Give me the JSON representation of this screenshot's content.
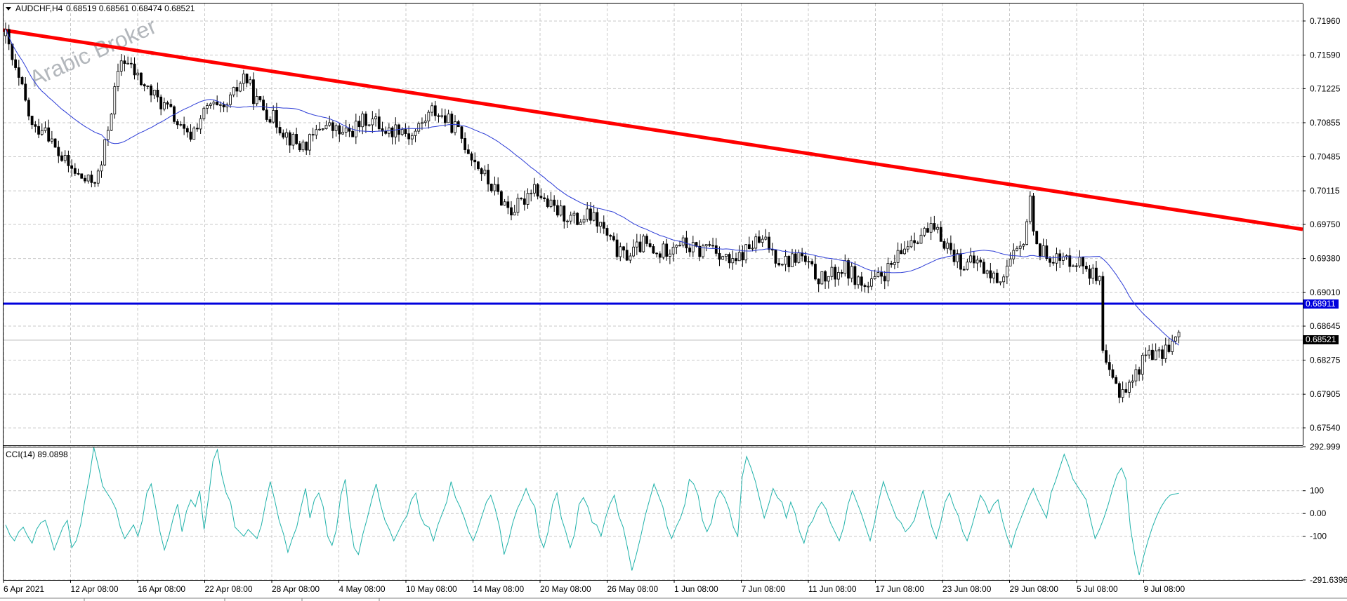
{
  "header": {
    "symbol": "AUDCHF,H4",
    "ohlc": "0.68519 0.68561 0.68474 0.68521"
  },
  "watermark": "Arabic Broker",
  "indicator": {
    "label": "CCI(14) 89.0898"
  },
  "colors": {
    "background": "#ffffff",
    "grid": "#c0c0c0",
    "candle": "#000000",
    "trendline": "#ff0000",
    "support_line": "#0000dd",
    "moving_average": "#2b3bd6",
    "cci_line": "#20b2aa",
    "price_tag_blue": "#0000dd",
    "price_tag_black": "#000000"
  },
  "chart_data": [
    {
      "type": "candlestick",
      "panel": "main",
      "symbol": "AUDCHF",
      "timeframe": "H4",
      "ylim": [
        0.6735,
        0.7215
      ],
      "y_ticks": [
        "0.71960",
        "0.71590",
        "0.71225",
        "0.70855",
        "0.70485",
        "0.70115",
        "0.69750",
        "0.69380",
        "0.69010",
        "0.68645",
        "0.68275",
        "0.67905",
        "0.67540"
      ],
      "x_ticks": [
        "6 Apr 2021",
        "12 Apr 08:00",
        "16 Apr 08:00",
        "22 Apr 08:00",
        "28 Apr 08:00",
        "4 May 08:00",
        "10 May 08:00",
        "14 May 08:00",
        "20 May 08:00",
        "26 May 08:00",
        "1 Jun 08:00",
        "7 Jun 08:00",
        "11 Jun 08:00",
        "17 Jun 08:00",
        "23 Jun 08:00",
        "29 Jun 08:00",
        "5 Jul 08:00",
        "9 Jul 08:00"
      ],
      "x_range_bars": [
        0,
        375
      ],
      "close_path": [
        [
          0,
          0.718
        ],
        [
          3,
          0.7145
        ],
        [
          6,
          0.712
        ],
        [
          10,
          0.7075
        ],
        [
          14,
          0.7085
        ],
        [
          18,
          0.7055
        ],
        [
          22,
          0.704
        ],
        [
          26,
          0.7028
        ],
        [
          30,
          0.702
        ],
        [
          34,
          0.703
        ],
        [
          38,
          0.71
        ],
        [
          42,
          0.7158
        ],
        [
          45,
          0.7145
        ],
        [
          50,
          0.7125
        ],
        [
          55,
          0.711
        ],
        [
          60,
          0.7095
        ],
        [
          63,
          0.7078
        ],
        [
          66,
          0.7068
        ],
        [
          70,
          0.709
        ],
        [
          74,
          0.7105
        ],
        [
          78,
          0.7095
        ],
        [
          82,
          0.7115
        ],
        [
          86,
          0.7138
        ],
        [
          90,
          0.711
        ],
        [
          94,
          0.7098
        ],
        [
          98,
          0.7085
        ],
        [
          102,
          0.707
        ],
        [
          106,
          0.706
        ],
        [
          110,
          0.7065
        ],
        [
          114,
          0.7085
        ],
        [
          118,
          0.7078
        ],
        [
          122,
          0.7072
        ],
        [
          126,
          0.708
        ],
        [
          130,
          0.709
        ],
        [
          134,
          0.7085
        ],
        [
          138,
          0.7075
        ],
        [
          142,
          0.7082
        ],
        [
          146,
          0.707
        ],
        [
          150,
          0.7085
        ],
        [
          154,
          0.71
        ],
        [
          158,
          0.709
        ],
        [
          162,
          0.708
        ],
        [
          166,
          0.706
        ],
        [
          170,
          0.704
        ],
        [
          174,
          0.702
        ],
        [
          178,
          0.7005
        ],
        [
          182,
          0.699
        ],
        [
          186,
          0.6998
        ],
        [
          190,
          0.702
        ],
        [
          194,
          0.7
        ],
        [
          198,
          0.699
        ],
        [
          202,
          0.6985
        ],
        [
          206,
          0.6978
        ],
        [
          210,
          0.6985
        ],
        [
          214,
          0.6975
        ],
        [
          218,
          0.6955
        ],
        [
          222,
          0.694
        ],
        [
          226,
          0.6945
        ],
        [
          230,
          0.6955
        ],
        [
          234,
          0.694
        ],
        [
          238,
          0.6948
        ],
        [
          242,
          0.6958
        ],
        [
          246,
          0.695
        ],
        [
          250,
          0.6945
        ],
        [
          254,
          0.6955
        ],
        [
          258,
          0.6942
        ],
        [
          262,
          0.693
        ],
        [
          266,
          0.6945
        ],
        [
          270,
          0.6955
        ],
        [
          274,
          0.6955
        ],
        [
          278,
          0.6938
        ],
        [
          282,
          0.6935
        ],
        [
          286,
          0.6942
        ],
        [
          290,
          0.6925
        ],
        [
          294,
          0.6915
        ],
        [
          298,
          0.692
        ],
        [
          302,
          0.6928
        ],
        [
          306,
          0.6918
        ],
        [
          310,
          0.6905
        ],
        [
          314,
          0.6915
        ],
        [
          318,
          0.6925
        ],
        [
          322,
          0.694
        ],
        [
          326,
          0.696
        ],
        [
          330,
          0.6965
        ],
        [
          334,
          0.6968
        ],
        [
          338,
          0.6958
        ],
        [
          342,
          0.694
        ],
        [
          346,
          0.693
        ],
        [
          350,
          0.6935
        ],
        [
          354,
          0.692
        ],
        [
          358,
          0.6915
        ],
        [
          362,
          0.6935
        ],
        [
          366,
          0.6948
        ],
        [
          369,
          0.7
        ],
        [
          371,
          0.696
        ],
        [
          373,
          0.6942
        ],
        [
          375,
          0.6945
        ]
      ],
      "second_leg": {
        "x_offset_bars": 315,
        "close_path": [
          [
            0,
            0.6945
          ],
          [
            4,
            0.6935
          ],
          [
            8,
            0.6938
          ],
          [
            12,
            0.693
          ],
          [
            16,
            0.691
          ],
          [
            17,
            0.683
          ],
          [
            19,
            0.681
          ],
          [
            22,
            0.6795
          ],
          [
            25,
            0.68
          ],
          [
            28,
            0.682
          ],
          [
            31,
            0.684
          ],
          [
            34,
            0.683
          ],
          [
            37,
            0.6845
          ],
          [
            40,
            0.6852
          ]
        ]
      },
      "overlays": {
        "trendline": {
          "from": [
            "6 Apr 2021",
            0.7186
          ],
          "to": [
            "9 Jul 08:00+",
            0.6977
          ]
        },
        "support_level": 0.68911,
        "price_labels": [
          "0.68911",
          "0.68521"
        ],
        "current_price": 0.68521,
        "moving_average_shape": "smooth declining line ending near 0.6892"
      }
    },
    {
      "type": "line",
      "panel": "indicator",
      "name": "CCI(14)",
      "current": 89.0898,
      "ylim": [
        -291.6396,
        292.999
      ],
      "y_ticks": [
        "292.999",
        "100",
        "0.00",
        "-100",
        "-291.6396"
      ],
      "values": [
        -50,
        -95,
        -120,
        -80,
        -60,
        -100,
        -130,
        -70,
        -40,
        -30,
        -90,
        -160,
        -110,
        -60,
        -30,
        -150,
        -120,
        -50,
        60,
        160,
        290,
        210,
        120,
        90,
        60,
        20,
        -60,
        -110,
        -80,
        -50,
        -100,
        -30,
        90,
        130,
        30,
        -80,
        -160,
        -100,
        -20,
        40,
        -80,
        10,
        60,
        30,
        100,
        -70,
        70,
        230,
        280,
        170,
        90,
        50,
        -60,
        -80,
        -100,
        -70,
        -90,
        -110,
        -50,
        50,
        140,
        60,
        -30,
        -90,
        -170,
        -110,
        -60,
        30,
        110,
        -20,
        60,
        90,
        30,
        -100,
        -140,
        -70,
        80,
        150,
        -30,
        -150,
        -180,
        -90,
        -20,
        60,
        130,
        40,
        -30,
        -70,
        -120,
        -80,
        -40,
        -10,
        60,
        90,
        -10,
        -50,
        -60,
        -120,
        -50,
        0,
        50,
        140,
        70,
        30,
        -20,
        -80,
        -120,
        -70,
        -10,
        50,
        80,
        20,
        -60,
        -180,
        -120,
        -40,
        20,
        60,
        110,
        60,
        30,
        -100,
        -150,
        -80,
        40,
        90,
        -20,
        -80,
        -150,
        -90,
        40,
        70,
        30,
        -40,
        -50,
        -100,
        -20,
        40,
        80,
        -10,
        -60,
        -150,
        -250,
        -180,
        -100,
        -10,
        60,
        130,
        80,
        30,
        -60,
        -110,
        -60,
        -20,
        40,
        150,
        130,
        80,
        -30,
        -80,
        -40,
        60,
        100,
        70,
        20,
        -60,
        -100,
        160,
        250,
        200,
        140,
        60,
        -20,
        40,
        110,
        70,
        50,
        -20,
        50,
        0,
        -80,
        -130,
        -60,
        -30,
        20,
        50,
        20,
        -40,
        -80,
        -120,
        -60,
        40,
        100,
        50,
        0,
        -60,
        -120,
        -40,
        60,
        140,
        80,
        30,
        -20,
        -40,
        -80,
        -60,
        -30,
        40,
        100,
        20,
        -60,
        -110,
        -40,
        50,
        90,
        30,
        -10,
        -80,
        -120,
        -60,
        10,
        80,
        50,
        0,
        40,
        60,
        -30,
        -100,
        -150,
        -80,
        -30,
        20,
        70,
        110,
        60,
        20,
        -20,
        90,
        140,
        200,
        260,
        210,
        150,
        120,
        90,
        60,
        -30,
        -110,
        -70,
        -20,
        40,
        110,
        170,
        200,
        150,
        -60,
        -180,
        -270,
        -190,
        -120,
        -60,
        -10,
        30,
        60,
        80,
        85,
        89.0898
      ]
    }
  ]
}
